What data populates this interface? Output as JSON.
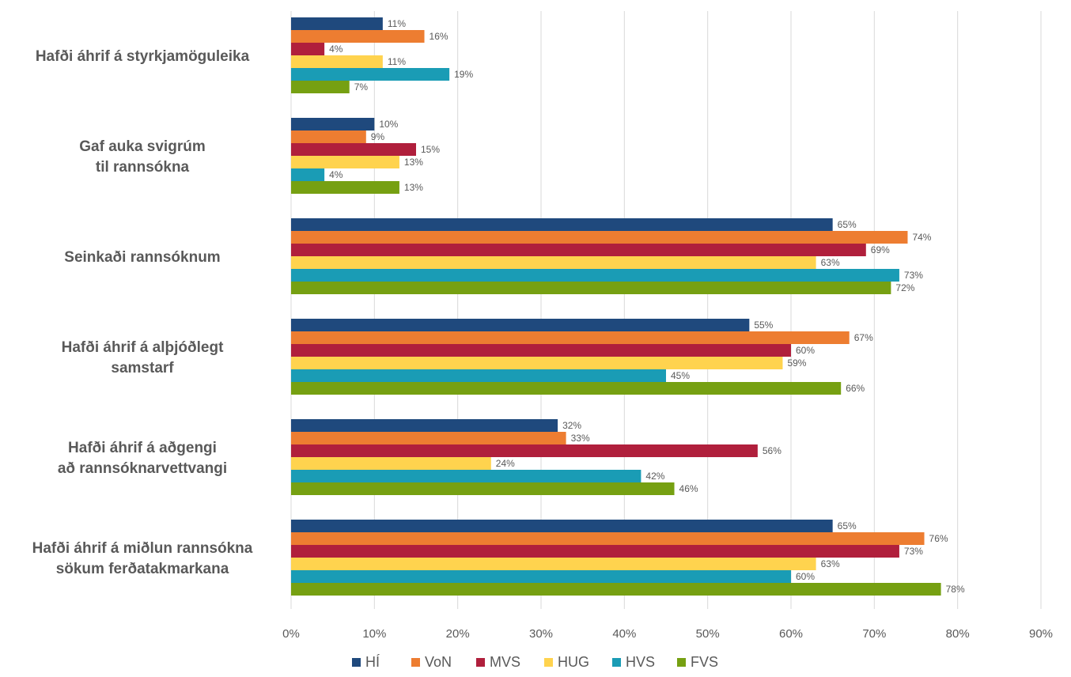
{
  "chart_data": {
    "type": "bar",
    "orientation": "horizontal",
    "title": "",
    "xlabel": "",
    "ylabel": "",
    "categories": [
      [
        "Hafði áhrif á styrkjamöguleika"
      ],
      [
        "Gaf auka svigrúm",
        "til rannsókna"
      ],
      [
        "Seinkaði rannsóknum"
      ],
      [
        "Hafði áhrif á alþjóðlegt",
        "samstarf"
      ],
      [
        "Hafði áhrif á aðgengi",
        "að rannsóknarvettvangi"
      ],
      [
        "Hafði áhrif á miðlun rannsókna",
        "sökum ferðatakmarkana"
      ]
    ],
    "series": [
      {
        "name": "HÍ",
        "color": "#1f497d",
        "values": [
          11,
          10,
          65,
          55,
          32,
          65
        ]
      },
      {
        "name": "VoN",
        "color": "#ed7d31",
        "values": [
          16,
          9,
          74,
          67,
          33,
          76
        ]
      },
      {
        "name": "MVS",
        "color": "#b01f3c",
        "values": [
          4,
          15,
          69,
          60,
          56,
          73
        ]
      },
      {
        "name": "HUG",
        "color": "#ffd34e",
        "values": [
          11,
          13,
          63,
          59,
          24,
          63
        ]
      },
      {
        "name": "HVS",
        "color": "#1a9cb5",
        "values": [
          19,
          4,
          73,
          45,
          42,
          60
        ]
      },
      {
        "name": "FVS",
        "color": "#76a012",
        "values": [
          7,
          13,
          72,
          66,
          46,
          78
        ]
      }
    ],
    "xlim": [
      0,
      90
    ],
    "xticks": [
      "0%",
      "10%",
      "20%",
      "30%",
      "40%",
      "50%",
      "60%",
      "70%",
      "80%",
      "90%"
    ],
    "value_suffix": "%",
    "grid": true,
    "legend_position": "bottom"
  }
}
